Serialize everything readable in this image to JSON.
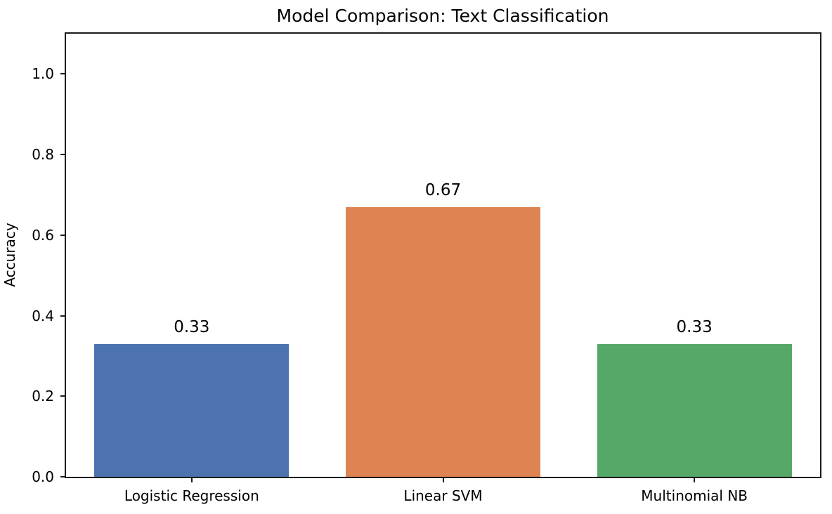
{
  "chart_data": {
    "type": "bar",
    "title": "Model Comparison: Text Classification",
    "xlabel": "",
    "ylabel": "Accuracy",
    "categories": [
      "Logistic Regression",
      "Linear SVM",
      "Multinomial NB"
    ],
    "values": [
      0.33,
      0.67,
      0.33
    ],
    "bar_labels": [
      "0.33",
      "0.67",
      "0.33"
    ],
    "bar_colors": [
      "#4c72b0",
      "#dd8452",
      "#55a868"
    ],
    "ylim": [
      0,
      1.1
    ],
    "yticks": [
      0.0,
      0.2,
      0.4,
      0.6,
      0.8,
      1.0
    ],
    "ytick_labels": [
      "0.0",
      "0.2",
      "0.4",
      "0.6",
      "0.8",
      "1.0"
    ],
    "grid": false,
    "legend": null,
    "frame_color": "#1b1b1b",
    "background_color": "#ffffff",
    "bar_width_fraction": 0.775
  }
}
